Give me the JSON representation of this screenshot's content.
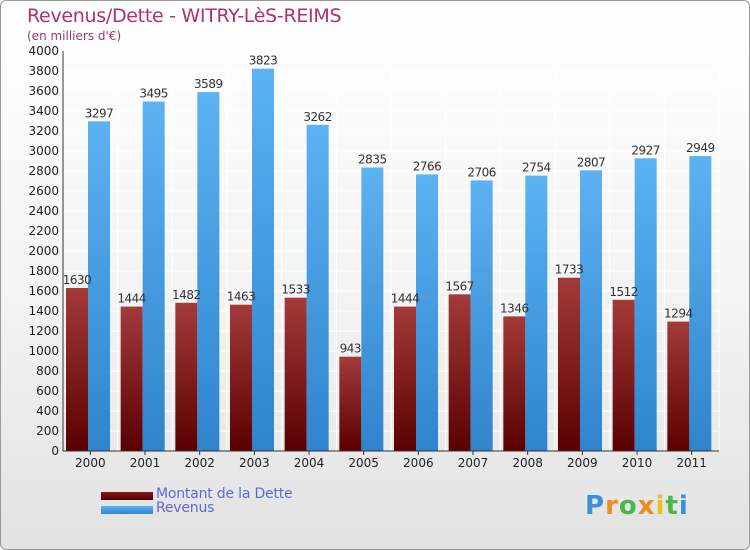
{
  "chart_data": {
    "type": "bar",
    "title": "Revenus/Dette - WITRY-LèS-REIMS",
    "subtitle": "(en milliers d'€)",
    "categories": [
      "2000",
      "2001",
      "2002",
      "2003",
      "2004",
      "2005",
      "2006",
      "2007",
      "2008",
      "2009",
      "2010",
      "2011"
    ],
    "series": [
      {
        "name": "Montant de la Dette",
        "values": [
          1630,
          1444,
          1482,
          1463,
          1533,
          943,
          1444,
          1567,
          1346,
          1733,
          1512,
          1294
        ],
        "color": "#7a1010"
      },
      {
        "name": "Revenus",
        "values": [
          3297,
          3495,
          3589,
          3823,
          3262,
          2835,
          2766,
          2706,
          2754,
          2807,
          2927,
          2949
        ],
        "color": "#4aa3e8"
      }
    ],
    "data_labels": [
      [
        "1630",
        "1444",
        "1482",
        "1463",
        "1533",
        "943",
        "1444",
        "1567",
        "1346",
        "1733",
        "1512",
        "1294"
      ],
      [
        "3297",
        "3495",
        "3589",
        "3823",
        "3262",
        "2835",
        "2766",
        "2706",
        "2754",
        "2807",
        "2927",
        "2949"
      ]
    ],
    "y_ticks": [
      0,
      200,
      400,
      600,
      800,
      1000,
      1200,
      1400,
      1600,
      1800,
      2000,
      2200,
      2400,
      2600,
      2800,
      3000,
      3200,
      3400,
      3600,
      3800,
      4000
    ],
    "ylim": [
      0,
      4000
    ],
    "grid": true,
    "legend_position": "bottom-left"
  },
  "logo_text": "Proxiti"
}
